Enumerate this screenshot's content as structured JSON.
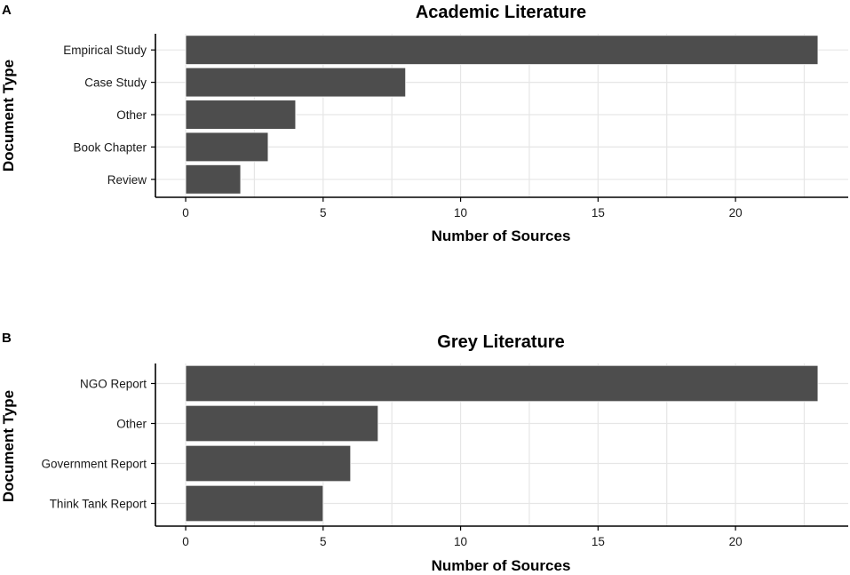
{
  "chart_data": [
    {
      "type": "bar",
      "orientation": "horizontal",
      "panel": "A",
      "title": "Academic Literature",
      "xlabel": "Number of Sources",
      "ylabel": "Document Type",
      "categories": [
        "Empirical Study",
        "Case Study",
        "Other",
        "Book Chapter",
        "Review"
      ],
      "values": [
        23,
        8,
        4,
        3,
        2
      ],
      "xlim": [
        -1.1,
        24.1
      ],
      "xticks": [
        0,
        5,
        10,
        15,
        20
      ],
      "bar_color": "#4d4d4d",
      "grid": true
    },
    {
      "type": "bar",
      "orientation": "horizontal",
      "panel": "B",
      "title": "Grey Literature",
      "xlabel": "Number of Sources",
      "ylabel": "Document Type",
      "categories": [
        "NGO Report",
        "Other",
        "Government Report",
        "Think Tank Report"
      ],
      "values": [
        23,
        7,
        6,
        5
      ],
      "xlim": [
        -1.1,
        24.1
      ],
      "xticks": [
        0,
        5,
        10,
        15,
        20
      ],
      "bar_color": "#4d4d4d",
      "grid": true
    }
  ]
}
